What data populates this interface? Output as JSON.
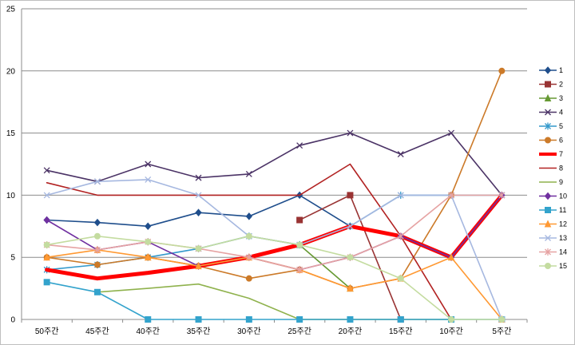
{
  "chart_data": {
    "type": "line",
    "title": "",
    "xlabel": "",
    "ylabel": "",
    "categories": [
      "50주간",
      "45주간",
      "40주간",
      "35주간",
      "30주간",
      "25주간",
      "20주간",
      "15주간",
      "10주간",
      "5주간"
    ],
    "ylim": [
      0,
      25
    ],
    "yticks": [
      "0",
      "5",
      "10",
      "15",
      "20",
      "25"
    ],
    "grid": "horizontal",
    "legend_position": "right",
    "series": [
      {
        "name": "1",
        "color": "#1f4e8c",
        "marker": "diamond",
        "values": [
          8,
          7.8,
          7.5,
          8.6,
          8.3,
          10,
          7.5,
          null,
          null,
          null
        ]
      },
      {
        "name": "2",
        "color": "#993333",
        "marker": "square",
        "values": [
          null,
          null,
          null,
          null,
          null,
          8,
          10,
          0,
          null,
          null
        ]
      },
      {
        "name": "3",
        "color": "#669933",
        "marker": "triangle",
        "values": [
          null,
          null,
          null,
          null,
          null,
          6,
          2.5,
          null,
          null,
          null
        ]
      },
      {
        "name": "4",
        "color": "#4b3366",
        "marker": "x",
        "values": [
          12,
          11.1,
          12.5,
          11.4,
          11.7,
          14,
          15,
          13.3,
          15,
          10
        ]
      },
      {
        "name": "5",
        "color": "#3399cc",
        "marker": "star",
        "values": [
          4,
          4.4,
          5,
          5.7,
          6.7,
          6,
          7.5,
          10,
          10,
          10
        ]
      },
      {
        "name": "6",
        "color": "#cc7a29",
        "marker": "circle",
        "values": [
          5,
          4.4,
          5,
          4.3,
          3.3,
          4,
          2.5,
          3.3,
          10,
          20
        ]
      },
      {
        "name": "7",
        "color": "#ff0000",
        "marker": "none",
        "width": 5,
        "values": [
          4,
          3.3,
          3.75,
          4.3,
          5,
          6,
          7.5,
          6.7,
          5,
          10
        ]
      },
      {
        "name": "8",
        "color": "#b22222",
        "marker": "none",
        "values": [
          11,
          10,
          10,
          10,
          10,
          10,
          12.5,
          6.7,
          0,
          null
        ]
      },
      {
        "name": "9",
        "color": "#8fb24d",
        "marker": "none",
        "values": [
          null,
          2.2,
          2.5,
          2.85,
          1.7,
          0,
          0,
          0,
          0,
          null
        ]
      },
      {
        "name": "10",
        "color": "#7030a0",
        "marker": "diamond",
        "values": [
          8,
          5.6,
          6.25,
          4.3,
          5,
          4,
          5,
          6.7,
          5,
          10
        ]
      },
      {
        "name": "11",
        "color": "#33a3cc",
        "marker": "square",
        "values": [
          3,
          2.2,
          0,
          0,
          0,
          0,
          0,
          0,
          0,
          0
        ]
      },
      {
        "name": "12",
        "color": "#ff9933",
        "marker": "triangle",
        "values": [
          5,
          5.6,
          5,
          4.3,
          5,
          4,
          2.5,
          3.3,
          5,
          0
        ]
      },
      {
        "name": "13",
        "color": "#a6b8e0",
        "marker": "x",
        "values": [
          10,
          11.1,
          11.25,
          10,
          6.7,
          6,
          7.5,
          10,
          10,
          0
        ]
      },
      {
        "name": "14",
        "color": "#e6a3a3",
        "marker": "star",
        "values": [
          6,
          5.6,
          6.25,
          5.7,
          5,
          4,
          5,
          6.7,
          10,
          10
        ]
      },
      {
        "name": "15",
        "color": "#c4dca0",
        "marker": "circle",
        "values": [
          6,
          6.7,
          6.25,
          5.7,
          6.7,
          6,
          5,
          3.3,
          0,
          0
        ]
      }
    ]
  }
}
